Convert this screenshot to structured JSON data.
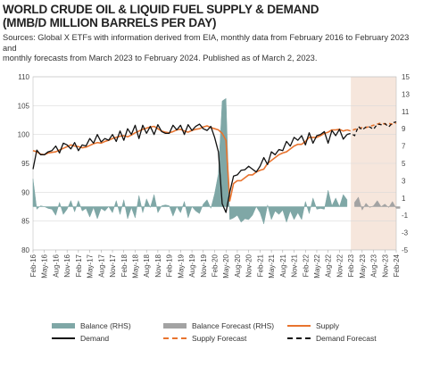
{
  "header": {
    "title_line1": "WORLD CRUDE OIL & LIQUID FUEL SUPPLY & DEMAND",
    "title_line2": "(MMB/D MILLION BARRELS PER DAY)",
    "subtitle_line1": "Sources: Global X ETFs with information derived from EIA, monthly data from February 2016 to February 2023 and",
    "subtitle_line2": "monthly forecasts from March 2023 to February 2024. Published as of March 2, 2023."
  },
  "chart_data": {
    "type": "line",
    "left_axis": {
      "min": 80,
      "max": 110,
      "ticks": [
        80,
        85,
        90,
        95,
        100,
        105,
        110
      ]
    },
    "right_axis": {
      "min": -5,
      "max": 15,
      "ticks": [
        -5,
        -3,
        -1,
        1,
        3,
        5,
        7,
        9,
        11,
        13,
        15
      ]
    },
    "x_tick_labels": [
      "Feb-16",
      "May-16",
      "Aug-16",
      "Nov-16",
      "Feb-17",
      "May-17",
      "Aug-17",
      "Nov-17",
      "Feb-18",
      "May-18",
      "Aug-18",
      "Nov-18",
      "Feb-19",
      "May-19",
      "Aug-19",
      "Nov-19",
      "Feb-20",
      "May-20",
      "Aug-20",
      "Nov-20",
      "Feb-21",
      "May-21",
      "Aug-21",
      "Nov-21",
      "Feb-22",
      "May-22",
      "Aug-22",
      "Nov-22",
      "Feb-23",
      "May-23",
      "Aug-23",
      "Nov-23",
      "Feb-24"
    ],
    "forecast_start": "Feb-23",
    "colors": {
      "balance": "#7fa7a6",
      "balance_forecast": "#a3a3a3",
      "supply": "#e8742f",
      "demand": "#111111",
      "forecast_shade": "#f6e6dc",
      "grid": "#d9d9d9"
    },
    "legend": {
      "balance": "Balance (RHS)",
      "balance_forecast": "Balance Forecast (RHS)",
      "supply": "Supply",
      "demand": "Demand",
      "supply_forecast": "Supply Forecast",
      "demand_forecast": "Demand Forecast"
    },
    "series": [
      {
        "name": "Supply",
        "axis": "left",
        "start": "Feb-16",
        "values": [
          97.2,
          97.0,
          96.6,
          96.5,
          96.8,
          96.9,
          97.0,
          97.3,
          97.6,
          97.9,
          98.2,
          98.0,
          97.9,
          97.7,
          97.8,
          98.1,
          98.4,
          98.6,
          98.5,
          98.8,
          99.0,
          99.3,
          99.5,
          99.7,
          99.8,
          99.6,
          99.9,
          100.3,
          100.6,
          100.9,
          101.1,
          101.3,
          101.4,
          101.0,
          100.6,
          100.4,
          100.3,
          100.5,
          100.8,
          100.9,
          100.6,
          100.4,
          100.7,
          100.9,
          101.0,
          101.3,
          101.5,
          101.2,
          101.0,
          100.8,
          100.2,
          99.0,
          88.5,
          91.5,
          92.0,
          92.0,
          92.5,
          93.0,
          93.0,
          93.5,
          93.8,
          94.0,
          95.0,
          95.5,
          96.0,
          96.5,
          96.8,
          97.0,
          97.5,
          98.0,
          98.3,
          98.3,
          98.8,
          99.5,
          99.5,
          99.5,
          99.8,
          100.2,
          100.4,
          100.8,
          100.8,
          100.9,
          100.6,
          100.8
        ],
        "forecast": [
          100.6,
          100.9,
          101.0,
          101.2,
          101.2,
          101.4,
          101.6,
          101.8,
          102.0,
          101.8,
          101.9,
          101.8,
          102.0
        ]
      },
      {
        "name": "Demand",
        "axis": "left",
        "start": "Feb-16",
        "values": [
          94.0,
          97.3,
          96.5,
          96.5,
          97.0,
          97.2,
          98.0,
          96.8,
          98.5,
          98.2,
          97.5,
          98.6,
          97.2,
          98.2,
          98.0,
          99.3,
          98.5,
          100.0,
          98.7,
          99.3,
          99.0,
          100.0,
          98.8,
          100.6,
          99.0,
          101.0,
          100.0,
          101.6,
          99.3,
          101.6,
          100.2,
          101.4,
          100.0,
          101.7,
          100.5,
          100.2,
          100.2,
          101.6,
          100.8,
          101.6,
          100.0,
          101.7,
          100.7,
          101.4,
          101.8,
          101.0,
          100.7,
          101.4,
          99.5,
          97.0,
          88.0,
          86.5,
          90.0,
          92.8,
          93.0,
          93.8,
          93.9,
          94.5,
          94.0,
          93.5,
          94.5,
          96.0,
          94.8,
          97.0,
          96.5,
          97.4,
          97.2,
          98.8,
          98.0,
          99.5,
          99.0,
          99.8,
          98.2,
          100.3,
          98.5,
          99.8,
          100.0,
          100.5,
          98.5,
          100.7,
          99.8,
          100.9,
          99.2,
          100.0
        ],
        "forecast": [
          100.2,
          99.8,
          101.4,
          100.8,
          101.3,
          101.3,
          100.9,
          101.8,
          101.7,
          101.9,
          101.3,
          102.0,
          102.2
        ]
      },
      {
        "name": "Balance (RHS)",
        "axis": "right",
        "type": "area",
        "start": "Feb-16",
        "values": [
          3.2,
          -0.3,
          0.1,
          0.0,
          -0.2,
          -0.3,
          -1.0,
          0.5,
          -0.9,
          -0.3,
          0.7,
          -0.6,
          0.7,
          -0.5,
          -0.2,
          -1.2,
          -0.1,
          -1.4,
          -0.2,
          -0.5,
          0.0,
          -0.7,
          0.7,
          -0.9,
          0.8,
          -1.4,
          -0.1,
          -1.3,
          1.3,
          -0.7,
          0.9,
          -0.1,
          1.4,
          -0.7,
          0.1,
          0.2,
          0.1,
          -1.1,
          0.0,
          -0.7,
          0.6,
          -1.3,
          0.0,
          -0.5,
          -0.8,
          0.3,
          0.8,
          -0.2,
          1.5,
          3.8,
          12.2,
          12.5,
          -1.5,
          -1.3,
          -1.0,
          -1.8,
          -1.4,
          -1.5,
          -1.0,
          0.0,
          -0.7,
          -2.0,
          0.2,
          -1.5,
          -0.5,
          -0.9,
          -0.4,
          -1.8,
          -0.5,
          -1.5,
          -0.7,
          -1.5,
          0.6,
          -0.8,
          1.0,
          -0.3,
          -0.2,
          -0.3,
          1.9,
          0.1,
          1.0,
          0.0,
          1.4,
          0.8
        ]
      },
      {
        "name": "Balance Forecast (RHS)",
        "axis": "right",
        "type": "area",
        "start": "Mar-23",
        "values": [
          0.5,
          1.1,
          -0.4,
          0.4,
          -0.1,
          0.1,
          0.7,
          0.0,
          0.3,
          -0.1,
          0.6,
          -0.2,
          -0.2
        ]
      }
    ]
  }
}
